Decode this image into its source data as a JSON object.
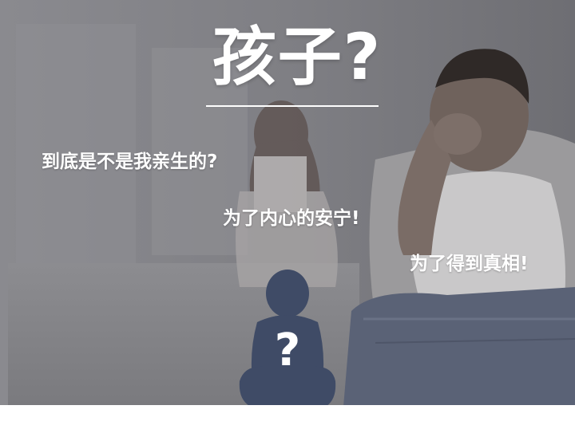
{
  "headline": "孩子?",
  "captions": [
    "到底是不是我亲生的?",
    "为了内心的安宁!",
    "为了得到真相!"
  ],
  "child_mark": "?",
  "colors": {
    "overlay": "#77777d",
    "child_silhouette": "#3f4b66",
    "text": "#ffffff"
  }
}
